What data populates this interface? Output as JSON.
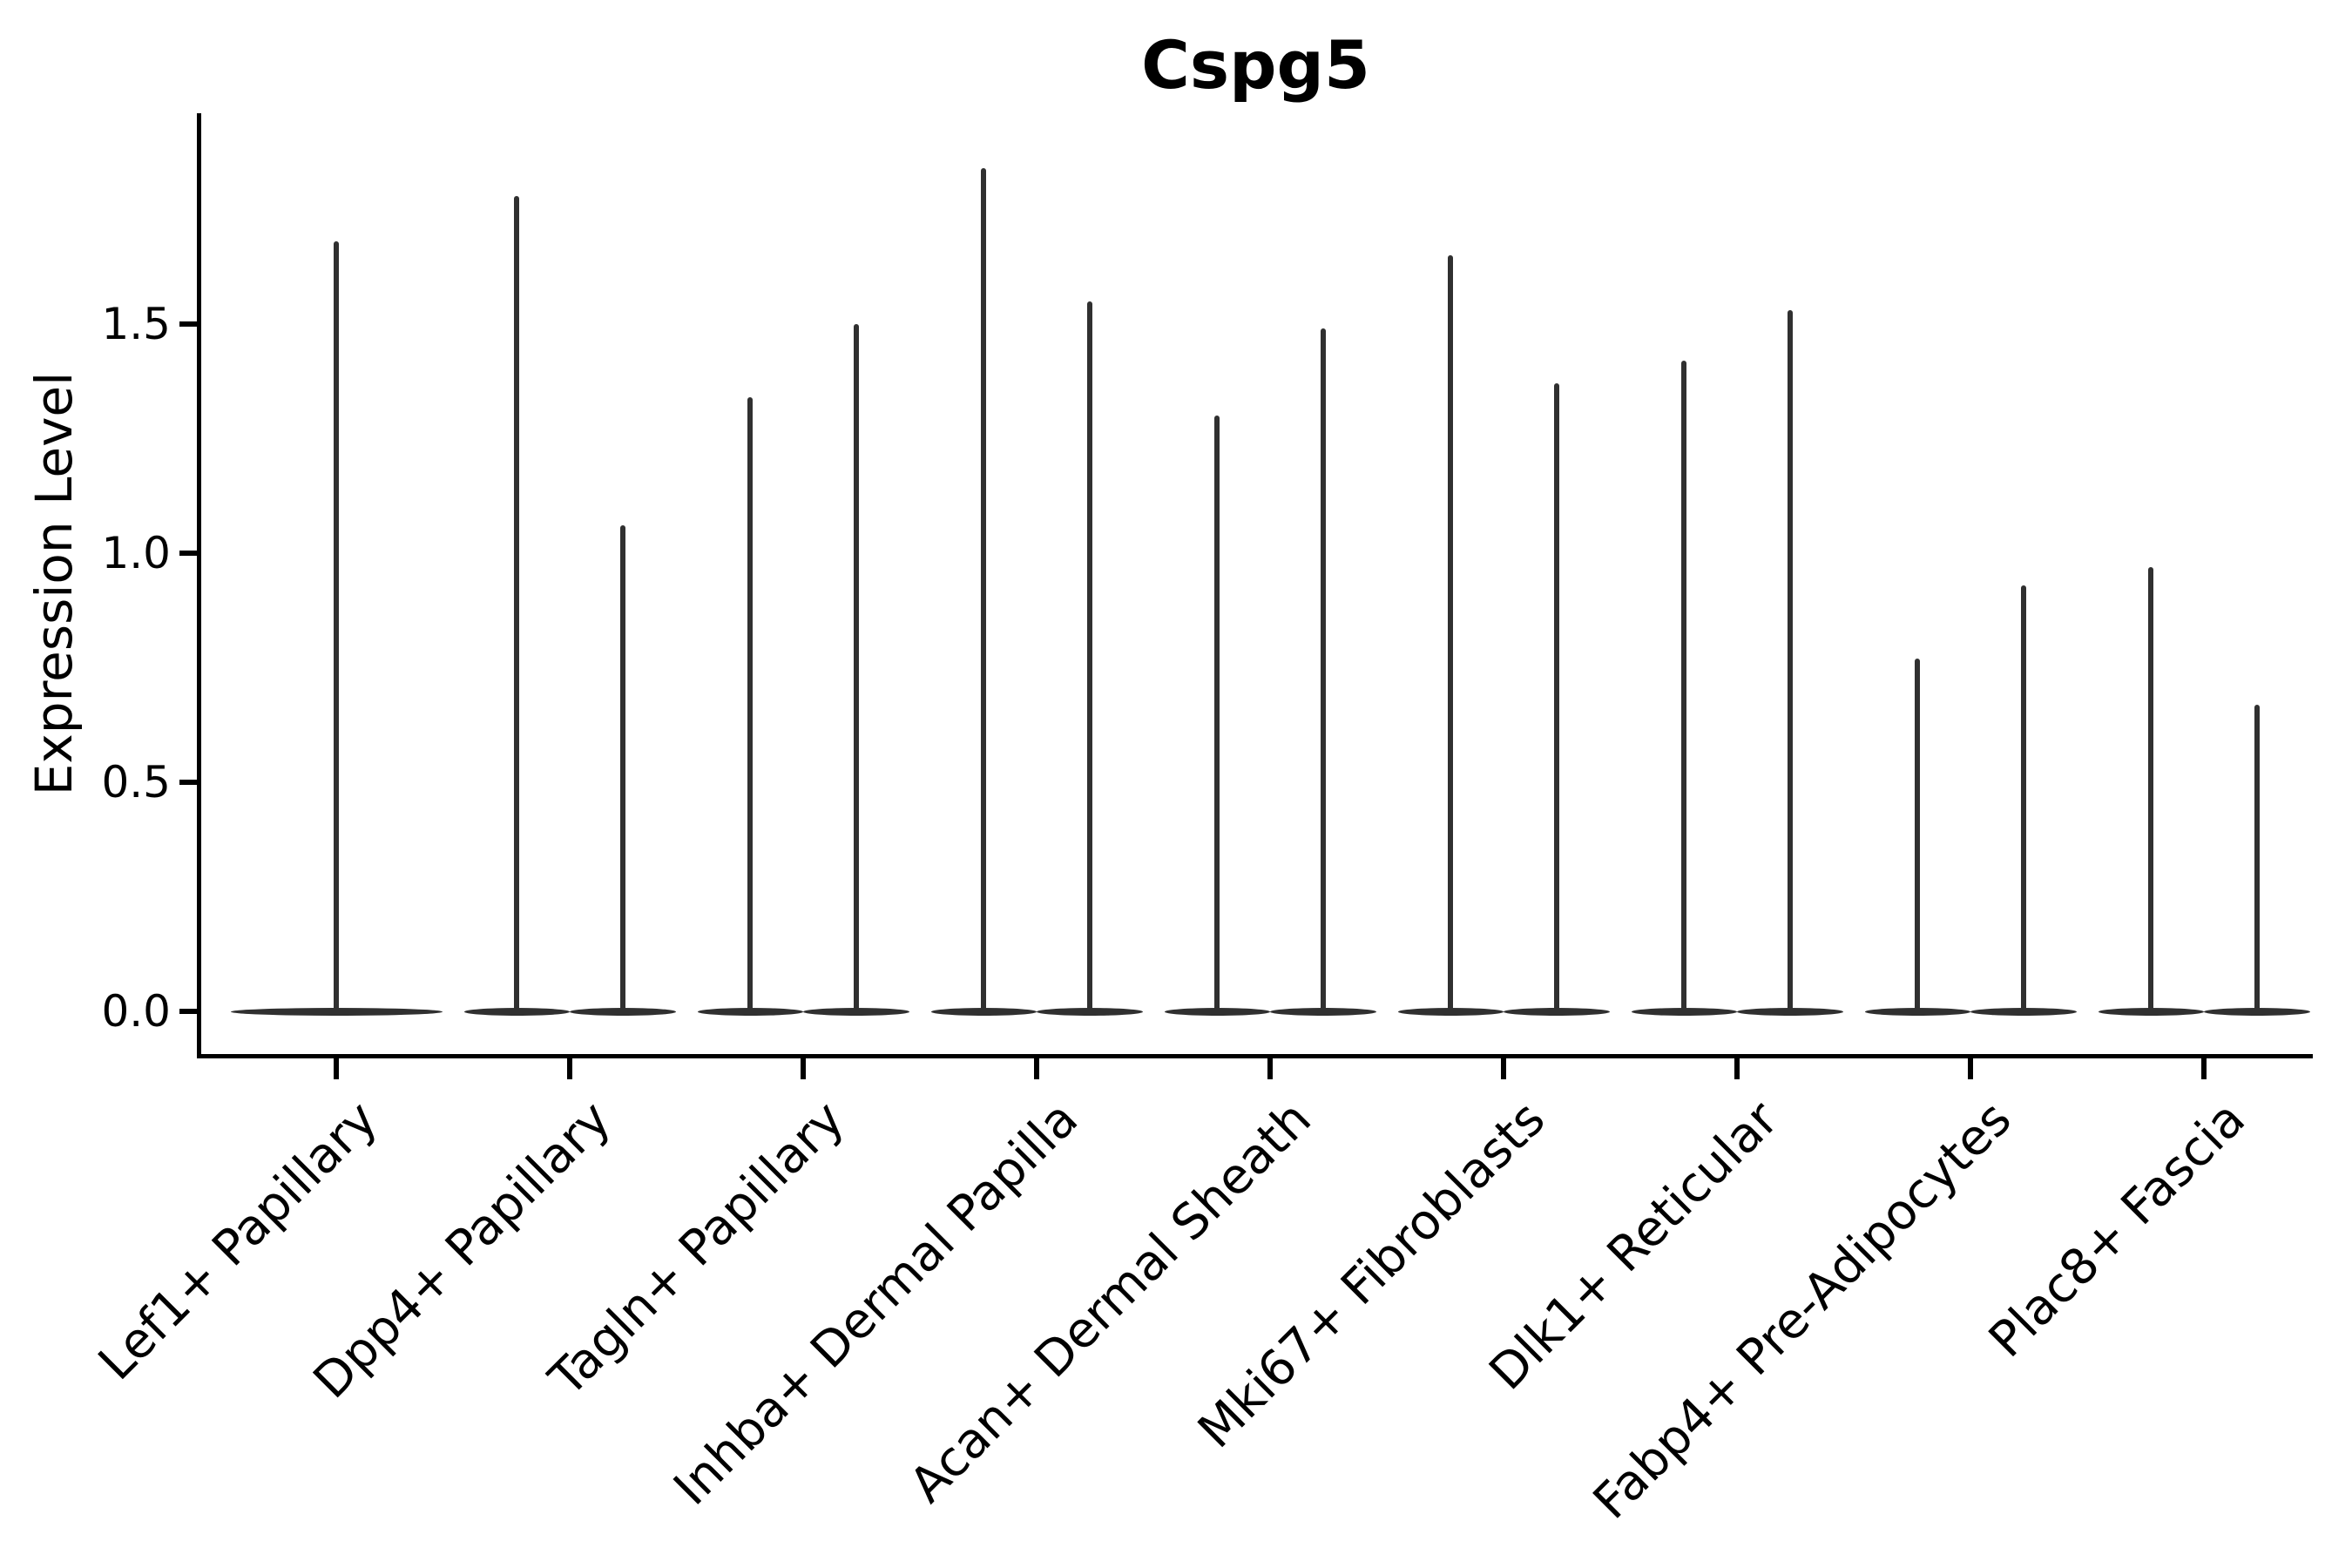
{
  "chart_data": {
    "type": "violin",
    "title": "Cspg5",
    "ylabel": "Expression Level",
    "xlabel": "",
    "yticks": [
      0.0,
      0.5,
      1.0,
      1.5
    ],
    "ytick_labels": [
      "0.0",
      "0.5",
      "1.0",
      "1.5"
    ],
    "ylim": [
      -0.09,
      1.96
    ],
    "grid": false,
    "legend": "none",
    "baseline_value": 0.0,
    "stroke_color": "#303030",
    "axis_color": "#000000",
    "background_color": "#ffffff",
    "categories": [
      "Lef1+ Papillary",
      "Dpp4+ Papillary",
      "Tagln+ Papillary",
      "Inhba+ Dermal Papilla",
      "Acan+ Dermal Sheath",
      "Mki67+ Fibroblasts",
      "Dlk1+ Reticular",
      "Fabp4+ Pre-Adipocytes",
      "Plac8+ Fascia"
    ],
    "groups": [
      {
        "category": "Lef1+ Papillary",
        "violins": [
          {
            "position": "center",
            "max_expression": 1.68,
            "min_expression": 0.0
          }
        ]
      },
      {
        "category": "Dpp4+ Papillary",
        "violins": [
          {
            "position": "left",
            "max_expression": 1.78,
            "min_expression": 0.0
          },
          {
            "position": "right",
            "max_expression": 1.06,
            "min_expression": 0.0
          }
        ]
      },
      {
        "category": "Tagln+ Papillary",
        "violins": [
          {
            "position": "left",
            "max_expression": 1.34,
            "min_expression": 0.0
          },
          {
            "position": "right",
            "max_expression": 1.5,
            "min_expression": 0.0
          }
        ]
      },
      {
        "category": "Inhba+ Dermal Papilla",
        "violins": [
          {
            "position": "left",
            "max_expression": 1.84,
            "min_expression": 0.0
          },
          {
            "position": "right",
            "max_expression": 1.55,
            "min_expression": 0.0
          }
        ]
      },
      {
        "category": "Acan+ Dermal Sheath",
        "violins": [
          {
            "position": "left",
            "max_expression": 1.3,
            "min_expression": 0.0
          },
          {
            "position": "right",
            "max_expression": 1.49,
            "min_expression": 0.0
          }
        ]
      },
      {
        "category": "Mki67+ Fibroblasts",
        "violins": [
          {
            "position": "left",
            "max_expression": 1.65,
            "min_expression": 0.0
          },
          {
            "position": "right",
            "max_expression": 1.37,
            "min_expression": 0.0
          }
        ]
      },
      {
        "category": "Dlk1+ Reticular",
        "violins": [
          {
            "position": "left",
            "max_expression": 1.42,
            "min_expression": 0.0
          },
          {
            "position": "right",
            "max_expression": 1.53,
            "min_expression": 0.0
          }
        ]
      },
      {
        "category": "Fabp4+ Pre-Adipocytes",
        "violins": [
          {
            "position": "left",
            "max_expression": 0.77,
            "min_expression": 0.0
          },
          {
            "position": "right",
            "max_expression": 0.93,
            "min_expression": 0.0
          }
        ]
      },
      {
        "category": "Plac8+ Fascia",
        "violins": [
          {
            "position": "left",
            "max_expression": 0.97,
            "min_expression": 0.0
          },
          {
            "position": "right",
            "max_expression": 0.67,
            "min_expression": 0.0
          }
        ]
      }
    ]
  }
}
